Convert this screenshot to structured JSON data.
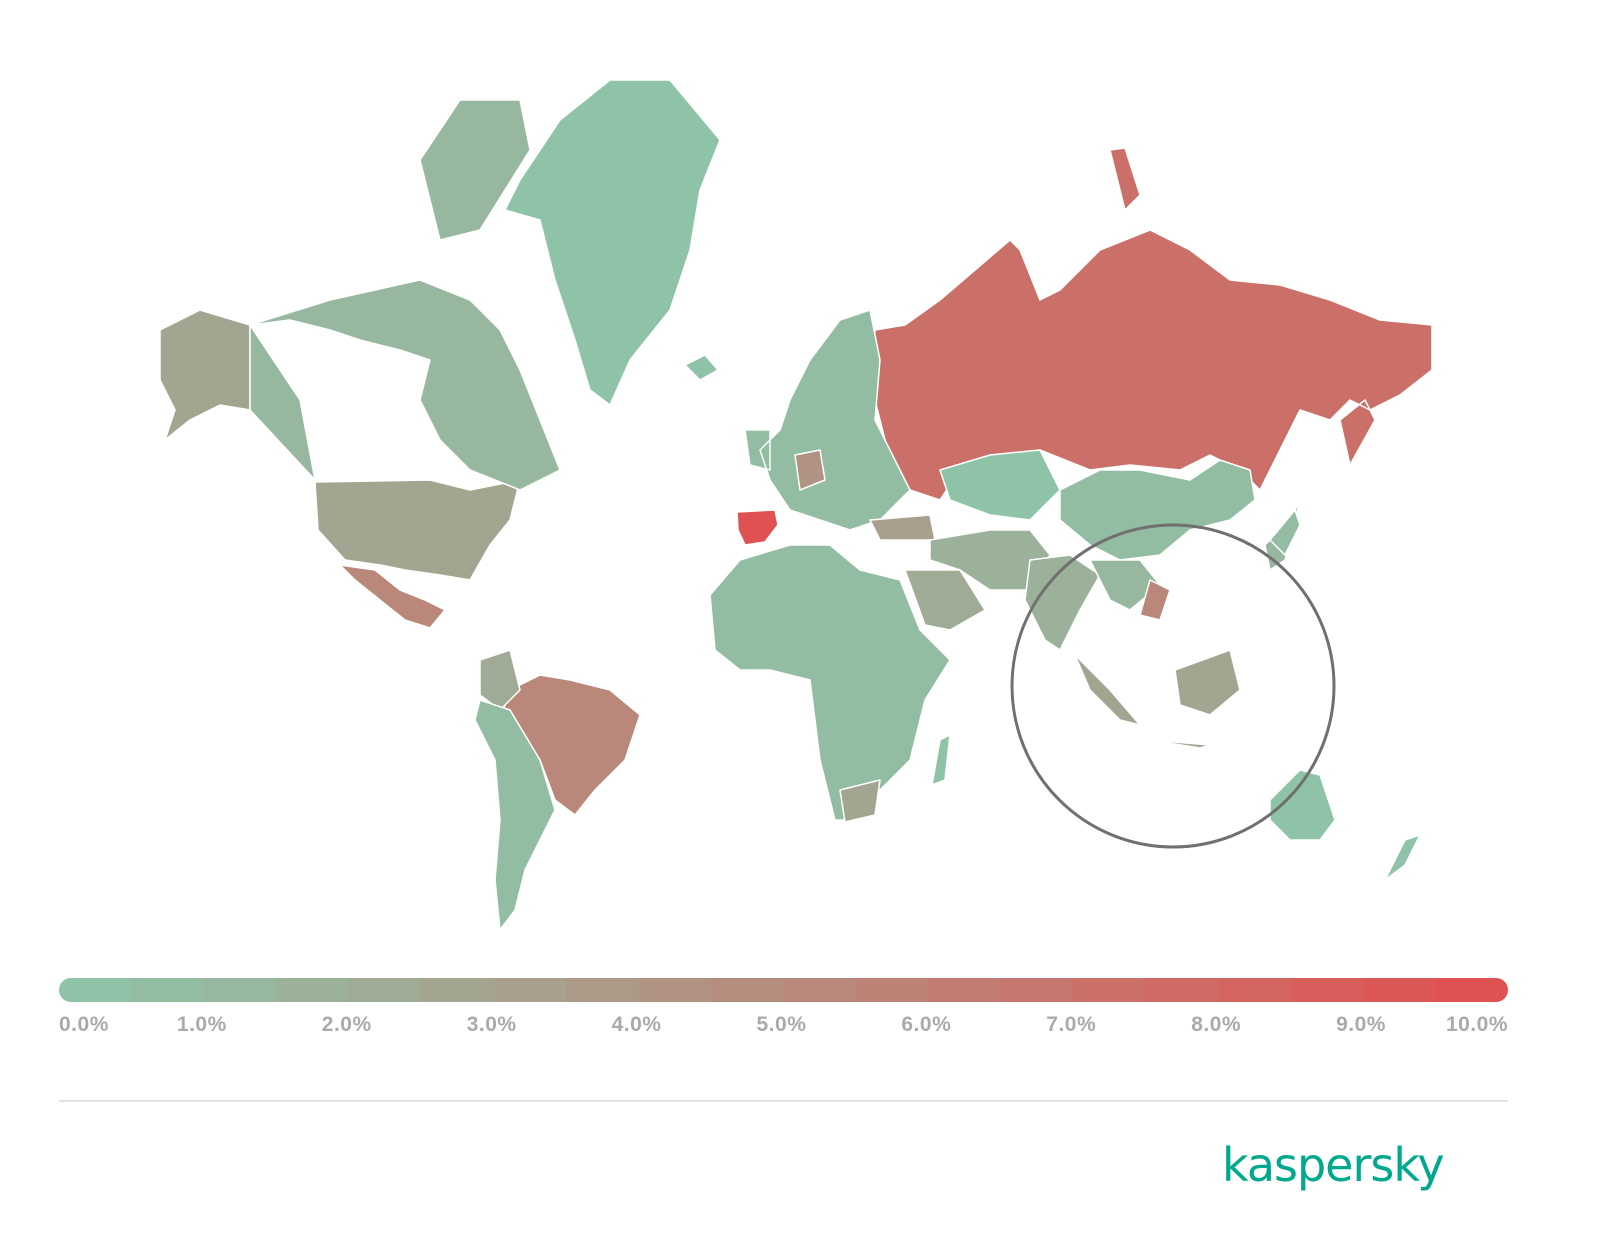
{
  "colors": {
    "low": "#8ec3a7",
    "high": "#e05252",
    "no_data": "#8a8a8a"
  },
  "legend": {
    "min": 0,
    "max": 10,
    "steps": 20,
    "labels": [
      "0.0%",
      "1.0%",
      "2.0%",
      "3.0%",
      "4.0%",
      "5.0%",
      "6.0%",
      "7.0%",
      "8.0%",
      "9.0%",
      "10.0%"
    ]
  },
  "highlight": {
    "region": "Southeast Asia"
  },
  "countries": [
    {
      "name": "Russia",
      "value": 7.0
    },
    {
      "name": "Spain",
      "value": 9.8
    },
    {
      "name": "Brazil",
      "value": 5.0
    },
    {
      "name": "Mexico",
      "value": 5.2
    },
    {
      "name": "United States",
      "value": 2.6
    },
    {
      "name": "Alaska",
      "value": 2.6
    },
    {
      "name": "Canada",
      "value": 1.4
    },
    {
      "name": "Greenland",
      "value": 0.3
    },
    {
      "name": "Iceland",
      "value": 0.3
    },
    {
      "name": "Europe",
      "value": 0.8
    },
    {
      "name": "Germany",
      "value": 4.2
    },
    {
      "name": "Turkey",
      "value": 3.2
    },
    {
      "name": "China",
      "value": 0.5
    },
    {
      "name": "Kazakhstan",
      "value": 0.4
    },
    {
      "name": "Middle East",
      "value": 1.5
    },
    {
      "name": "Saudi Arabia",
      "value": 2.1
    },
    {
      "name": "India",
      "value": 1.8
    },
    {
      "name": "Southeast Asia",
      "value": 1.0
    },
    {
      "name": "Vietnam",
      "value": 5.0
    },
    {
      "name": "Indonesia",
      "value": 2.5
    },
    {
      "name": "Japan",
      "value": 0.5
    },
    {
      "name": "Africa",
      "value": 0.5
    },
    {
      "name": "South Africa",
      "value": 2.5
    },
    {
      "name": "Madagascar",
      "value": 0.4
    },
    {
      "name": "Colombia",
      "value": 2.0
    },
    {
      "name": "South America",
      "value": 0.6
    },
    {
      "name": "Australia",
      "value": 0.4
    },
    {
      "name": "New Zealand",
      "value": 0.3
    }
  ],
  "brand": {
    "logo_text": "kaspersky"
  }
}
